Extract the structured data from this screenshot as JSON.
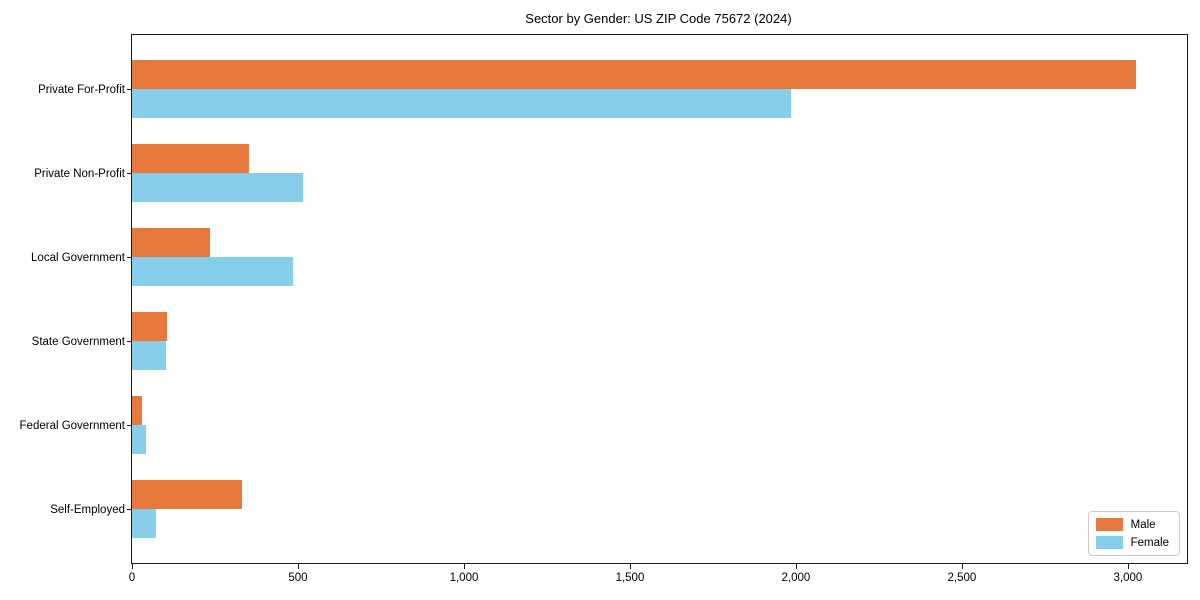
{
  "chart_data": {
    "type": "bar",
    "orientation": "horizontal",
    "title": "Sector by Gender: US ZIP Code 75672 (2024)",
    "categories": [
      "Private For-Profit",
      "Private Non-Profit",
      "Local Government",
      "State Government",
      "Federal Government",
      "Self-Employed"
    ],
    "series": [
      {
        "name": "Male",
        "color": "#e8793c",
        "values": [
          3025,
          352,
          235,
          105,
          30,
          331
        ]
      },
      {
        "name": "Female",
        "color": "#87ceeb",
        "values": [
          1985,
          515,
          485,
          102,
          42,
          72
        ]
      }
    ],
    "xlabel": "",
    "ylabel": "",
    "xlim": [
      0,
      3178
    ],
    "x_ticks": [
      0,
      500,
      1000,
      1500,
      2000,
      2500,
      3000
    ],
    "x_tick_labels": [
      "0",
      "500",
      "1,000",
      "1,500",
      "2,000",
      "2,500",
      "3,000"
    ],
    "grid": false,
    "legend_position": "lower right",
    "frame": true,
    "colors": {
      "spine": "#1a1a1a",
      "text": "#000000",
      "background": "#ffffff"
    }
  }
}
